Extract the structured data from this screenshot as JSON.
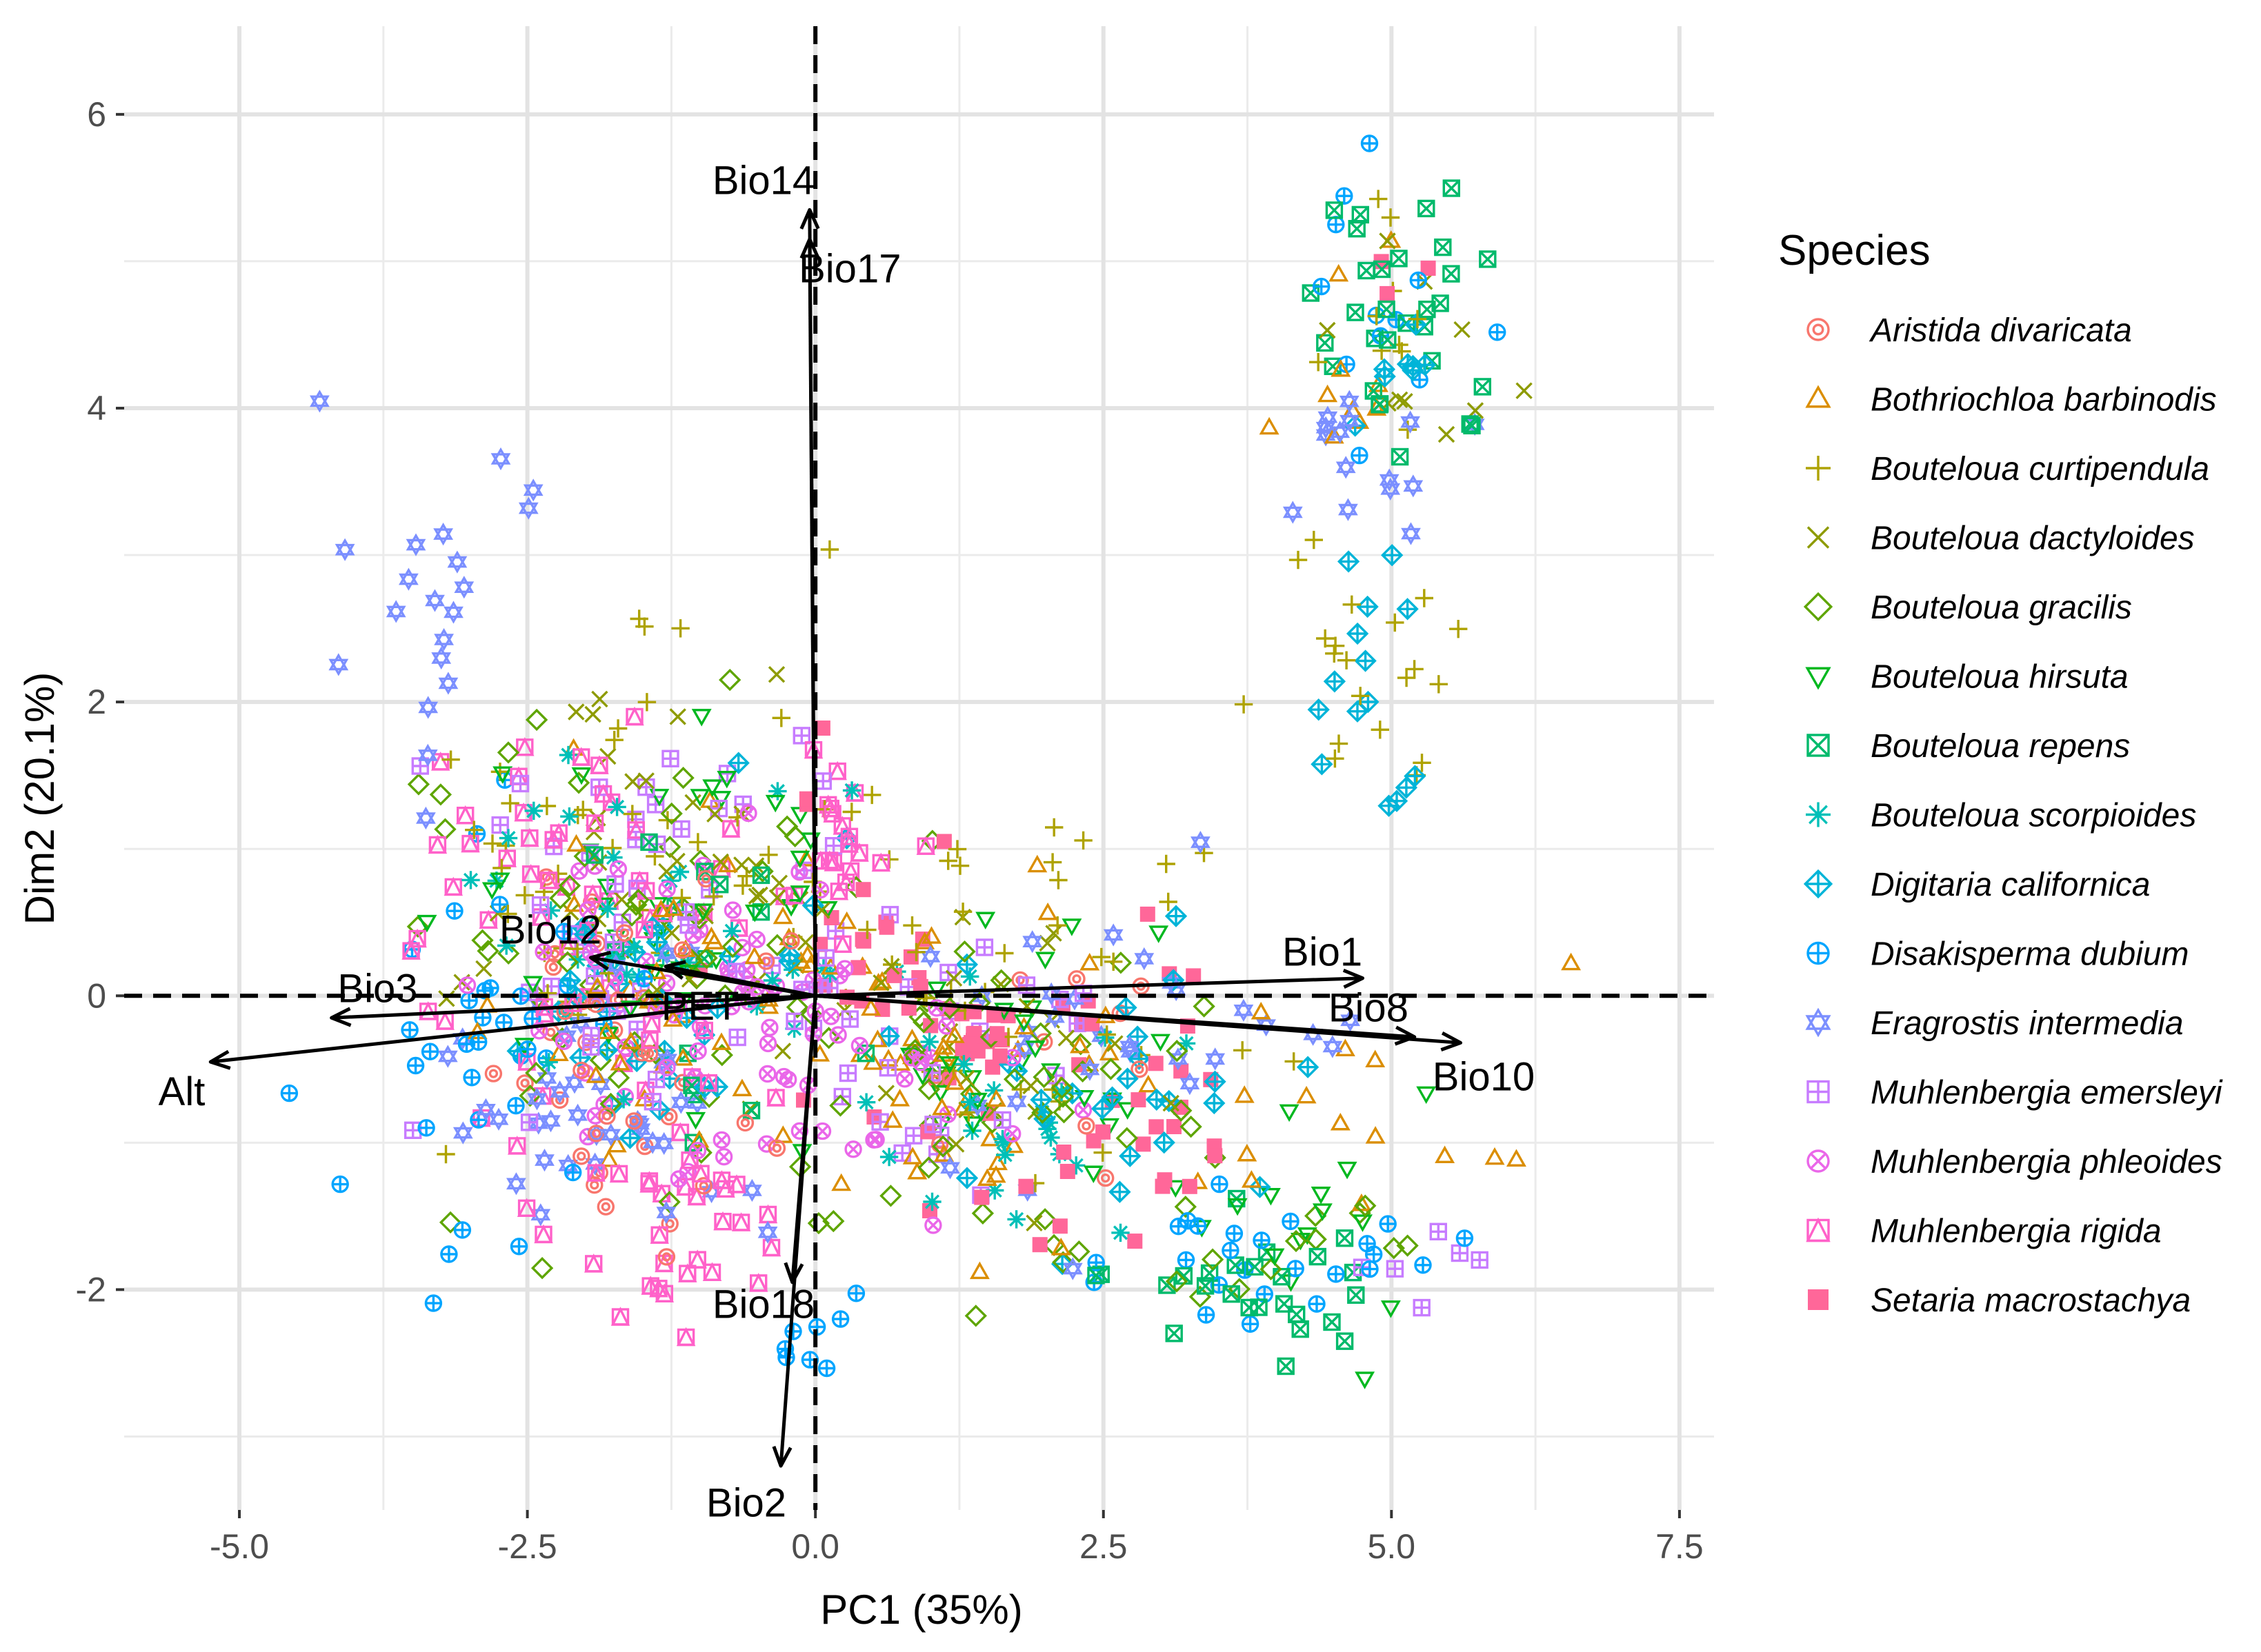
{
  "chart_data": {
    "type": "scatter",
    "subtype": "pca-biplot",
    "xlabel": "PC1 (35%)",
    "ylabel": "Dim2 (20.1%)",
    "xlim": [
      -6.0,
      7.8
    ],
    "ylim": [
      -3.5,
      6.6
    ],
    "x_ticks": [
      {
        "value": -5.0,
        "label": "-5.0"
      },
      {
        "value": -2.5,
        "label": "-2.5"
      },
      {
        "value": 0.0,
        "label": "0.0"
      },
      {
        "value": 2.5,
        "label": "2.5"
      },
      {
        "value": 5.0,
        "label": "5.0"
      },
      {
        "value": 7.5,
        "label": "7.5"
      }
    ],
    "y_ticks": [
      {
        "value": -2,
        "label": "-2"
      },
      {
        "value": 0,
        "label": "0"
      },
      {
        "value": 2,
        "label": "2"
      },
      {
        "value": 4,
        "label": "4"
      },
      {
        "value": 6,
        "label": "6"
      }
    ],
    "grid": true,
    "reference_lines": {
      "x": 0,
      "y": 0,
      "style": "dashed"
    },
    "legend_title": "Species",
    "legend_position": "right",
    "series": [
      {
        "name": "Aristida divaricata",
        "color": "#F8766D",
        "marker": "circle-ring",
        "clusters": [
          [
            -1.5,
            -0.5,
            1.3,
            1.2,
            40
          ],
          [
            2.0,
            -0.3,
            1.4,
            1.0,
            10
          ]
        ]
      },
      {
        "name": "Bothriochloa barbinodis",
        "color": "#DB8E00",
        "marker": "triangle",
        "clusters": [
          [
            -1.0,
            0.0,
            1.5,
            1.3,
            50
          ],
          [
            1.5,
            -0.5,
            1.4,
            1.0,
            40
          ],
          [
            4.7,
            4.3,
            0.8,
            0.9,
            10
          ],
          [
            4.8,
            -1.0,
            1.5,
            1.0,
            15
          ]
        ]
      },
      {
        "name": "Bouteloua curtipendula",
        "color": "#AEA200",
        "marker": "plus",
        "clusters": [
          [
            -1.5,
            1.0,
            1.6,
            1.4,
            50
          ],
          [
            1.8,
            0.2,
            1.6,
            1.2,
            40
          ],
          [
            4.8,
            2.2,
            0.8,
            1.2,
            20
          ],
          [
            5.0,
            4.5,
            0.6,
            0.8,
            10
          ]
        ]
      },
      {
        "name": "Bouteloua dactyloides",
        "color": "#8E9B00",
        "marker": "x",
        "clusters": [
          [
            -1.3,
            0.8,
            1.5,
            1.3,
            40
          ],
          [
            1.5,
            -0.3,
            1.4,
            1.0,
            25
          ],
          [
            5.0,
            4.3,
            0.7,
            0.9,
            10
          ]
        ]
      },
      {
        "name": "Bouteloua gracilis",
        "color": "#5EA500",
        "marker": "diamond",
        "clusters": [
          [
            -1.5,
            0.3,
            1.6,
            1.4,
            60
          ],
          [
            1.5,
            -0.6,
            1.5,
            1.1,
            40
          ],
          [
            3.8,
            -1.5,
            1.4,
            0.7,
            20
          ]
        ]
      },
      {
        "name": "Bouteloua hirsuta",
        "color": "#00B81F",
        "marker": "triangle-down",
        "clusters": [
          [
            -1.5,
            0.5,
            1.5,
            1.2,
            40
          ],
          [
            1.8,
            -0.5,
            1.5,
            1.0,
            30
          ],
          [
            4.3,
            -1.4,
            1.2,
            0.8,
            15
          ]
        ]
      },
      {
        "name": "Bouteloua repens",
        "color": "#00BA6B",
        "marker": "square-x",
        "clusters": [
          [
            5.2,
            4.6,
            0.7,
            1.0,
            30
          ],
          [
            4.0,
            -2.0,
            1.2,
            0.4,
            25
          ],
          [
            -1.0,
            0.2,
            1.2,
            1.0,
            15
          ]
        ]
      },
      {
        "name": "Bouteloua scorpioides",
        "color": "#00C0B8",
        "marker": "asterisk",
        "clusters": [
          [
            -1.5,
            0.5,
            1.5,
            1.2,
            35
          ],
          [
            1.5,
            -0.8,
            1.4,
            1.0,
            25
          ]
        ]
      },
      {
        "name": "Digitaria californica",
        "color": "#00B4D8",
        "marker": "diamond-plus",
        "clusters": [
          [
            -1.2,
            0.0,
            1.5,
            1.2,
            35
          ],
          [
            2.5,
            -0.5,
            1.5,
            1.0,
            25
          ],
          [
            4.8,
            2.0,
            0.7,
            1.0,
            15
          ],
          [
            5.1,
            4.5,
            0.5,
            0.8,
            8
          ]
        ]
      },
      {
        "name": "Disakisperma dubium",
        "color": "#00A5FF",
        "marker": "circle-plus",
        "clusters": [
          [
            -2.8,
            -0.2,
            1.2,
            1.2,
            35
          ],
          [
            4.0,
            -1.8,
            1.3,
            0.5,
            25
          ],
          [
            4.8,
            4.8,
            0.7,
            0.9,
            12
          ],
          [
            -0.2,
            -2.3,
            0.5,
            0.3,
            8
          ]
        ]
      },
      {
        "name": "Eragrostis intermedia",
        "color": "#7B8FFF",
        "marker": "star-david",
        "clusters": [
          [
            -3.2,
            2.8,
            0.9,
            1.0,
            20
          ],
          [
            -2.0,
            -0.8,
            1.2,
            1.0,
            40
          ],
          [
            2.8,
            -0.3,
            1.4,
            1.0,
            30
          ],
          [
            4.8,
            3.8,
            0.5,
            0.6,
            15
          ]
        ]
      },
      {
        "name": "Muhlenbergia emersleyi",
        "color": "#C77CFF",
        "marker": "square-plus",
        "clusters": [
          [
            -1.3,
            0.5,
            1.5,
            1.3,
            50
          ],
          [
            1.2,
            -0.5,
            1.3,
            1.0,
            30
          ],
          [
            5.2,
            -2.0,
            0.6,
            0.4,
            6
          ]
        ]
      },
      {
        "name": "Muhlenbergia phleoides",
        "color": "#EA67E9",
        "marker": "circle-x",
        "clusters": [
          [
            -1.0,
            0.0,
            1.3,
            1.2,
            70
          ],
          [
            1.0,
            -0.5,
            1.0,
            0.8,
            20
          ]
        ]
      },
      {
        "name": "Muhlenbergia rigida",
        "color": "#FF61C9",
        "marker": "square-triangle",
        "clusters": [
          [
            -2.0,
            0.5,
            1.5,
            1.5,
            60
          ],
          [
            -1.0,
            -1.5,
            1.0,
            0.8,
            30
          ],
          [
            0.3,
            1.0,
            0.5,
            0.6,
            20
          ]
        ]
      },
      {
        "name": "Setaria macrostachya",
        "color": "#FF6799",
        "marker": "square-filled",
        "clusters": [
          [
            0.5,
            0.2,
            1.0,
            1.0,
            30
          ],
          [
            2.5,
            -0.8,
            1.2,
            1.0,
            35
          ],
          [
            1.4,
            -0.3,
            0.2,
            0.2,
            15
          ],
          [
            4.8,
            4.8,
            0.5,
            0.6,
            3
          ]
        ]
      }
    ],
    "loadings": [
      {
        "name": "Bio14",
        "x": -0.05,
        "y": 5.35
      },
      {
        "name": "Bio17",
        "x": -0.05,
        "y": 5.15
      },
      {
        "name": "Bio12",
        "x": -1.95,
        "y": 0.26
      },
      {
        "name": "Bio3",
        "x": -4.2,
        "y": -0.15
      },
      {
        "name": "PET",
        "x": -1.3,
        "y": 0.2
      },
      {
        "name": "Alt",
        "x": -5.25,
        "y": -0.45
      },
      {
        "name": "Bio1",
        "x": 4.75,
        "y": 0.12
      },
      {
        "name": "Bio8",
        "x": 5.2,
        "y": -0.28
      },
      {
        "name": "Bio10",
        "x": 5.6,
        "y": -0.32
      },
      {
        "name": "Bio18",
        "x": -0.2,
        "y": -1.95
      },
      {
        "name": "Bio2",
        "x": -0.3,
        "y": -3.2
      }
    ],
    "loading_labels": [
      {
        "name": "Bio14",
        "x": -0.45,
        "y": 5.55
      },
      {
        "name": "Bio17",
        "x": 0.3,
        "y": 4.95
      },
      {
        "name": "Bio12",
        "x": -2.3,
        "y": 0.45
      },
      {
        "name": "Bio3",
        "x": -3.8,
        "y": 0.05
      },
      {
        "name": "PET",
        "x": -1.0,
        "y": -0.07
      },
      {
        "name": "Alt",
        "x": -5.5,
        "y": -0.65
      },
      {
        "name": "Bio1",
        "x": 4.4,
        "y": 0.3
      },
      {
        "name": "Bio8",
        "x": 4.8,
        "y": -0.08
      },
      {
        "name": "Bio10",
        "x": 5.8,
        "y": -0.55
      },
      {
        "name": "Bio18",
        "x": -0.45,
        "y": -2.1
      },
      {
        "name": "Bio2",
        "x": -0.6,
        "y": -3.45
      }
    ]
  }
}
